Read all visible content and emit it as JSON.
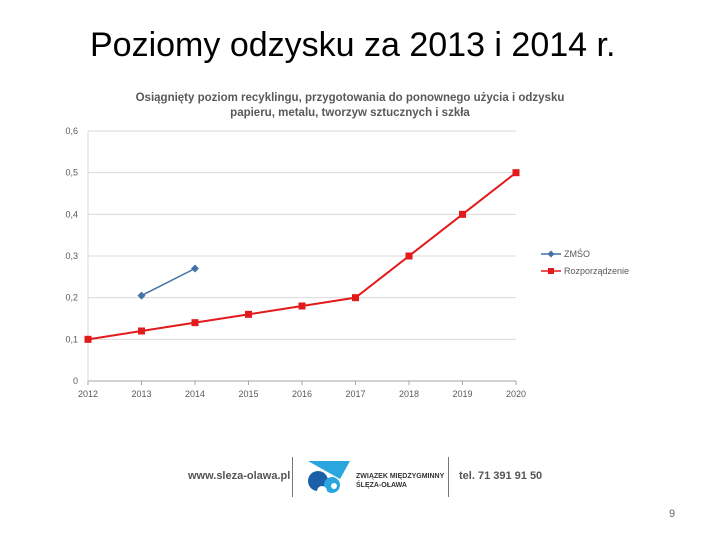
{
  "slide": {
    "title": "Poziomy odzysku za 2013 i 2014 r.",
    "page_number": "9"
  },
  "chart_data": {
    "type": "line",
    "title": "Osiągnięty poziom recyklingu, przygotowania do ponownego użycia i odzysku papieru, metalu, tworzyw sztucznych i szkła",
    "title_lines": [
      "Osiągnięty poziom recyklingu, przygotowania do ponownego użycia i odzysku",
      "papieru, metalu, tworzyw sztucznych i szkła"
    ],
    "x": [
      2012,
      2013,
      2014,
      2015,
      2016,
      2017,
      2018,
      2019,
      2020
    ],
    "y_ticks": [
      "0",
      "0,1",
      "0,2",
      "0,3",
      "0,4",
      "0,5",
      "0,6"
    ],
    "ylim": [
      0,
      0.6
    ],
    "grid": true,
    "legend_position": "right",
    "series": [
      {
        "name": "ZMŚO",
        "color": "#4472a8",
        "marker": "diamond",
        "points": [
          [
            2013,
            0.205
          ],
          [
            2014,
            0.27
          ]
        ]
      },
      {
        "name": "Rozporządzenie",
        "color": "#e31a1c",
        "marker": "square",
        "points": [
          [
            2012,
            0.1
          ],
          [
            2013,
            0.12
          ],
          [
            2014,
            0.14
          ],
          [
            2015,
            0.16
          ],
          [
            2016,
            0.18
          ],
          [
            2017,
            0.2
          ],
          [
            2018,
            0.3
          ],
          [
            2019,
            0.4
          ],
          [
            2020,
            0.5
          ]
        ]
      }
    ]
  },
  "footer": {
    "website": "www.sleza-olawa.pl",
    "org_line1": "ZWIĄZEK MIĘDZYGMINNY",
    "org_line2": "ŚLĘZA-OŁAWA",
    "phone": "tel. 71 391 91 50",
    "logo_colors": [
      "#1a5fa8",
      "#29a6dd"
    ]
  }
}
